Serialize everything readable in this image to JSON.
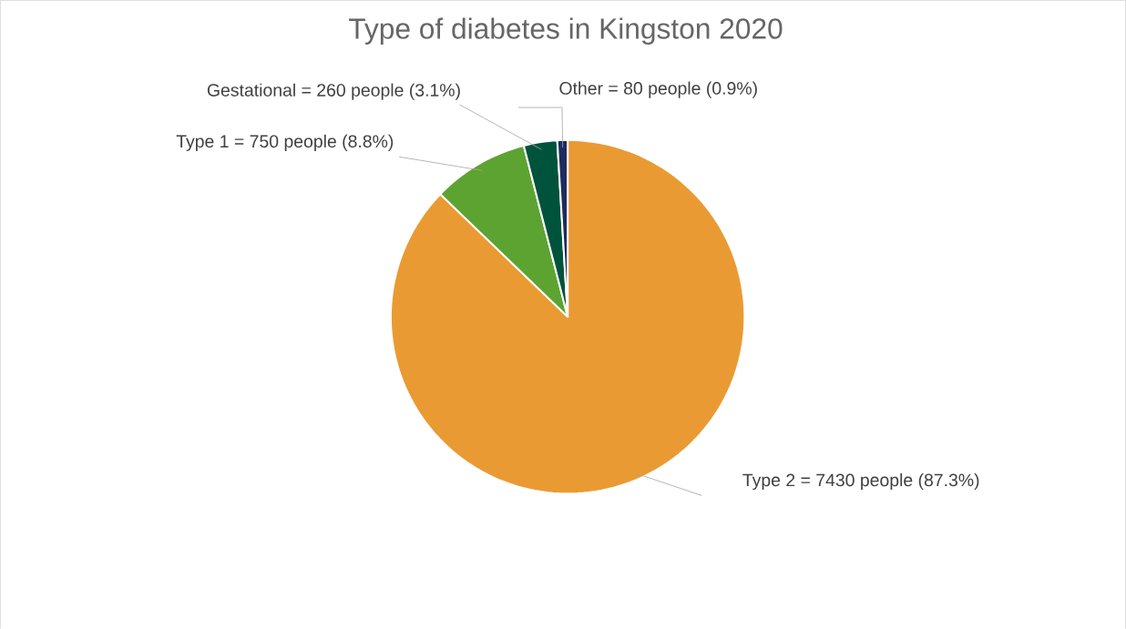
{
  "chart_data": {
    "type": "pie",
    "title": "Type of diabetes in Kingston 2020",
    "categories": [
      "Type 2 = 7430 people (87.3%)",
      "Type 1 = 750  people (8.8%)",
      "Gestational = 260 people (3.1%)",
      "Other = 80 people (0.9%)"
    ],
    "values": [
      7430,
      750,
      260,
      80
    ],
    "colors": [
      "#ea9a32",
      "#5da332",
      "#00533b",
      "#1f2b5f"
    ]
  }
}
